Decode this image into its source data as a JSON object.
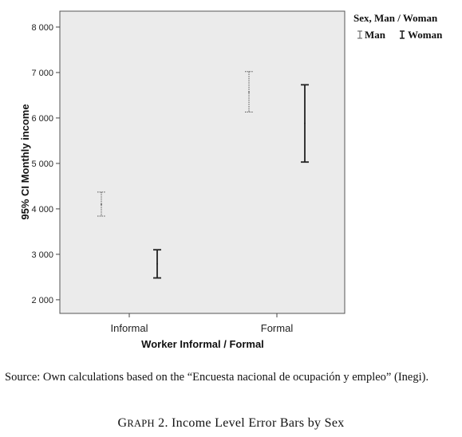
{
  "chart_data": {
    "type": "errorbar",
    "xlabel": "Worker Informal / Formal",
    "ylabel": "95% CI Monthly income",
    "categories": [
      "Informal",
      "Formal"
    ],
    "ylim": [
      1700,
      8350
    ],
    "yticks": [
      2000,
      3000,
      4000,
      5000,
      6000,
      7000,
      8000
    ],
    "ytick_labels": [
      "2 000",
      "3 000",
      "4 000",
      "5 000",
      "6 000",
      "7 000",
      "8 000"
    ],
    "legend": {
      "title": "Sex, Man / Woman",
      "position": "right"
    },
    "series": [
      {
        "name": "Man",
        "style": "dotted",
        "color": "#555555",
        "points": [
          {
            "x": "Informal",
            "low": 3840,
            "mean": 4100,
            "high": 4370
          },
          {
            "x": "Formal",
            "low": 6130,
            "mean": 6570,
            "high": 7020
          }
        ]
      },
      {
        "name": "Woman",
        "style": "solid",
        "color": "#222222",
        "points": [
          {
            "x": "Informal",
            "low": 2480,
            "mean": 2790,
            "high": 3100
          },
          {
            "x": "Formal",
            "low": 5030,
            "mean": 5880,
            "high": 6730
          }
        ]
      }
    ],
    "plot_background": "#ebebeb",
    "grid": false
  },
  "source": "Source: Own calculations based on the “Encuesta nacional de ocupación y empleo” (Inegi).",
  "caption": {
    "lead": "G",
    "smallcaps": "RAPH",
    "rest": " 2. Income Level Error Bars by Sex"
  }
}
